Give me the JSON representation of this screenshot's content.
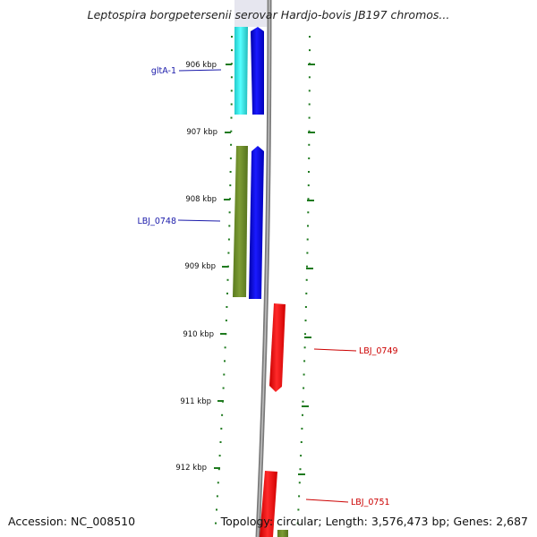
{
  "title": "Leptospira borgpetersenii serovar Hardjo-bovis JB197 chromos...",
  "footer": {
    "accession": "Accession: NC_008510",
    "summary": "Topology: circular; Length: 3,576,473 bp; Genes: 2,687"
  },
  "colors": {
    "forward_strand": "#0000ee",
    "reverse_strand": "#ee0000",
    "gltA_cds": "#33dddd",
    "LBJ_0748_cds": "#6b8a2a",
    "backbone": "#8a8a8a",
    "tick": "#1f7a1f",
    "left_label": "#1a1aaa",
    "right_label": "#cc0000"
  },
  "scale": {
    "unit": "kbp",
    "ticks": [
      {
        "label": "906 kbp"
      },
      {
        "label": "907 kbp"
      },
      {
        "label": "908 kbp"
      },
      {
        "label": "909 kbp"
      },
      {
        "label": "910 kbp"
      },
      {
        "label": "911 kbp"
      },
      {
        "label": "912 kbp"
      }
    ]
  },
  "genes": [
    {
      "name": "gltA-1",
      "strand": "forward",
      "side": "left"
    },
    {
      "name": "LBJ_0748",
      "strand": "forward",
      "side": "left"
    },
    {
      "name": "LBJ_0749",
      "strand": "reverse",
      "side": "right"
    },
    {
      "name": "LBJ_0751",
      "strand": "reverse",
      "side": "right"
    }
  ]
}
